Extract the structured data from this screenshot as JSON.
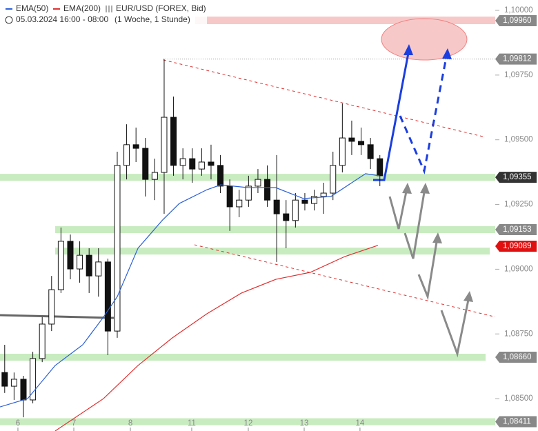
{
  "chart_data": {
    "type": "candlestick",
    "legend": [
      "EMA(50)",
      "EMA(200)"
    ],
    "instrument": "EUR/USD (FOREX, Bid)",
    "period": "05.03.2024 16:00 - 08:00",
    "interval": "(1 Woche, 1 Stunde)",
    "xlim": [
      -0.5,
      52.3
    ],
    "ylim": [
      1.08375,
      1.1004
    ],
    "xticks": [
      {
        "value": 1.41,
        "label": "6"
      },
      {
        "value": 7.37,
        "label": "7"
      },
      {
        "value": 13.4,
        "label": "8"
      },
      {
        "value": 19.94,
        "label": "11"
      },
      {
        "value": 25.97,
        "label": "12"
      },
      {
        "value": 31.93,
        "label": "13"
      },
      {
        "value": 37.88,
        "label": "14"
      }
    ],
    "yticks": [
      {
        "value": 1.1,
        "label": "1,10000"
      },
      {
        "value": 1.0975,
        "label": "1,09750"
      },
      {
        "value": 1.095,
        "label": "1,09500"
      },
      {
        "value": 1.0925,
        "label": "1,09250"
      },
      {
        "value": 1.09,
        "label": "1,09000"
      },
      {
        "value": 1.0875,
        "label": "1,08750"
      },
      {
        "value": 1.085,
        "label": "1,08500"
      }
    ],
    "open": [
      1.08601,
      1.08548,
      1.08575,
      1.08495,
      1.08655,
      1.08788,
      1.08921,
      1.09108,
      1.09001,
      1.09054,
      1.08974,
      1.09028,
      1.08761,
      1.09401,
      1.09481,
      1.09467,
      1.09347,
      1.09374,
      1.09587,
      1.09401,
      1.09427,
      1.09387,
      1.09414,
      1.09401,
      1.09321,
      1.09241,
      1.09267,
      1.09321,
      1.09347,
      1.09267,
      1.09214,
      1.09188,
      1.09267,
      1.09254,
      1.09281,
      1.09294,
      1.09401,
      1.09507,
      1.09494,
      1.09481,
      1.09427
    ],
    "high": [
      1.08708,
      1.08601,
      1.08588,
      1.08681,
      1.08815,
      1.08974,
      1.09161,
      1.09134,
      1.09108,
      1.09081,
      1.09081,
      1.09041,
      1.09454,
      1.0956,
      1.09547,
      1.09507,
      1.09427,
      1.09812,
      1.09667,
      1.09467,
      1.09467,
      1.09467,
      1.09481,
      1.09441,
      1.09347,
      1.09307,
      1.09361,
      1.09387,
      1.09401,
      1.09441,
      1.09267,
      1.09294,
      1.09294,
      1.09307,
      1.09334,
      1.09454,
      1.0964,
      1.09574,
      1.09547,
      1.09507,
      1.09441
    ],
    "low": [
      1.08522,
      1.08495,
      1.08428,
      1.08482,
      1.08641,
      1.08761,
      1.08908,
      1.08961,
      1.08948,
      1.08908,
      1.08894,
      1.08668,
      1.08735,
      1.09347,
      1.09414,
      1.09281,
      1.09267,
      1.09214,
      1.09361,
      1.09347,
      1.09334,
      1.09361,
      1.09347,
      1.09294,
      1.09148,
      1.09201,
      1.09241,
      1.09294,
      1.09241,
      1.09028,
      1.09081,
      1.09161,
      1.09227,
      1.09227,
      1.09214,
      1.09267,
      1.09374,
      1.09441,
      1.09441,
      1.09387,
      1.09321
    ],
    "close": [
      1.08548,
      1.08575,
      1.08495,
      1.08655,
      1.08788,
      1.08921,
      1.09108,
      1.09001,
      1.09054,
      1.08974,
      1.09028,
      1.08761,
      1.09401,
      1.09481,
      1.09467,
      1.09347,
      1.09374,
      1.09587,
      1.09401,
      1.09427,
      1.09387,
      1.09414,
      1.09401,
      1.09321,
      1.09241,
      1.09267,
      1.09321,
      1.09347,
      1.09267,
      1.09214,
      1.09188,
      1.09267,
      1.09254,
      1.09281,
      1.09294,
      1.09401,
      1.09507,
      1.09494,
      1.09481,
      1.09427,
      1.09361
    ],
    "series": [
      {
        "name": "EMA(50)",
        "color": "#2b5fd9",
        "x": [
          -0.5,
          2.44,
          5.38,
          8.32,
          10.53,
          12,
          14.21,
          16.78,
          18.62,
          21.56,
          23.03,
          25.97,
          28.91,
          31.85,
          34.79,
          37,
          38.47,
          39.94
        ],
        "values": [
          1.08468,
          1.085,
          1.08628,
          1.08708,
          1.08815,
          1.08894,
          1.09081,
          1.09188,
          1.09254,
          1.09307,
          1.09326,
          1.09315,
          1.09315,
          1.09273,
          1.09281,
          1.09334,
          1.09369,
          1.09361
        ]
      },
      {
        "name": "EMA(200)",
        "color": "#e03030",
        "x": [
          5.38,
          10.53,
          14.21,
          17.88,
          21.56,
          25.24,
          28.91,
          32.59,
          36.26,
          39.79
        ],
        "values": [
          1.08375,
          1.085,
          1.08628,
          1.08735,
          1.08828,
          1.08908,
          1.08961,
          1.08988,
          1.09049,
          1.09092
        ]
      }
    ],
    "zones": [
      1.09355,
      1.09153,
      1.0907,
      1.0866,
      1.08411
    ],
    "levels": [
      {
        "value": 1.0996,
        "label": "1,09960",
        "color": "#888888"
      },
      {
        "value": 1.09812,
        "label": "1,09812",
        "color": "#888888"
      },
      {
        "value": 1.09355,
        "label": "1,09355",
        "color": "#333333"
      },
      {
        "value": 1.09153,
        "label": "1,09153",
        "color": "#888888"
      },
      {
        "value": 1.09089,
        "label": "1,09089",
        "color": "#e01010"
      },
      {
        "value": 1.0866,
        "label": "1,08660",
        "color": "#888888"
      },
      {
        "value": 1.08411,
        "label": "1,08411",
        "color": "#888888"
      }
    ]
  }
}
